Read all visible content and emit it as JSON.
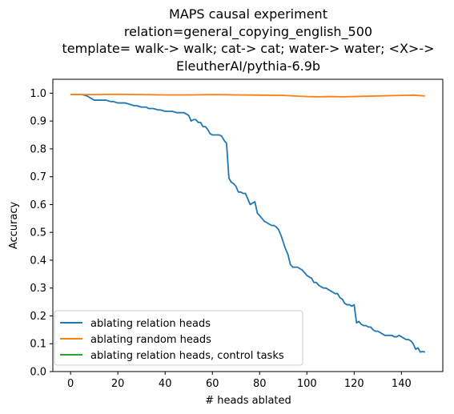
{
  "chart_data": {
    "type": "line",
    "title_lines": [
      "MAPS causal experiment",
      "relation=general_copying_english_500",
      "template= walk-> walk; cat-> cat; water-> water; <X>->",
      "EleutherAI/pythia-6.9b"
    ],
    "xlabel": "# heads ablated",
    "ylabel": "Accuracy",
    "xlim": [
      -7.5,
      157.5
    ],
    "ylim": [
      0.0,
      1.05
    ],
    "xticks": [
      0,
      20,
      40,
      60,
      80,
      100,
      120,
      140
    ],
    "yticks": [
      0.0,
      0.1,
      0.2,
      0.3,
      0.4,
      0.5,
      0.6,
      0.7,
      0.8,
      0.9,
      1.0
    ],
    "xtick_labels": [
      "0",
      "20",
      "40",
      "60",
      "80",
      "100",
      "120",
      "140"
    ],
    "ytick_labels": [
      "0.0",
      "0.1",
      "0.2",
      "0.3",
      "0.4",
      "0.5",
      "0.6",
      "0.7",
      "0.8",
      "0.9",
      "1.0"
    ],
    "grid": false,
    "legend_position": "lower-left",
    "series": [
      {
        "name": "ablating relation heads",
        "color": "#1f77b4",
        "x": [
          0,
          5,
          7,
          8,
          10,
          11,
          13,
          15,
          17,
          18,
          20,
          23,
          25,
          27,
          28,
          30,
          32,
          33,
          35,
          37,
          38,
          40,
          42,
          43,
          45,
          47,
          48,
          50,
          51,
          52,
          53,
          54,
          55,
          56,
          57,
          58,
          59,
          60,
          61,
          62,
          63,
          64,
          65,
          66,
          67,
          68,
          69,
          70,
          71,
          72,
          73,
          74,
          75,
          76,
          77,
          78,
          79,
          80,
          81,
          82,
          83,
          84,
          85,
          86,
          87,
          88,
          89,
          90,
          91,
          92,
          93,
          94,
          95,
          96,
          97,
          98,
          99,
          100,
          101,
          102,
          103,
          104,
          105,
          106,
          107,
          108,
          109,
          110,
          111,
          112,
          113,
          114,
          115,
          116,
          117,
          118,
          119,
          120,
          121,
          122,
          123,
          124,
          125,
          126,
          127,
          128,
          129,
          130,
          131,
          132,
          133,
          134,
          135,
          136,
          137,
          138,
          139,
          140,
          141,
          142,
          143,
          144,
          145,
          146,
          147,
          148,
          149,
          150
        ],
        "y": [
          0.995,
          0.995,
          0.99,
          0.985,
          0.975,
          0.975,
          0.975,
          0.975,
          0.97,
          0.97,
          0.965,
          0.965,
          0.96,
          0.955,
          0.955,
          0.95,
          0.95,
          0.945,
          0.945,
          0.94,
          0.94,
          0.935,
          0.935,
          0.935,
          0.93,
          0.93,
          0.93,
          0.92,
          0.9,
          0.905,
          0.905,
          0.895,
          0.895,
          0.88,
          0.88,
          0.87,
          0.855,
          0.85,
          0.85,
          0.85,
          0.85,
          0.845,
          0.83,
          0.82,
          0.695,
          0.68,
          0.675,
          0.665,
          0.645,
          0.645,
          0.64,
          0.64,
          0.62,
          0.6,
          0.605,
          0.61,
          0.57,
          0.56,
          0.55,
          0.54,
          0.535,
          0.53,
          0.525,
          0.525,
          0.52,
          0.51,
          0.49,
          0.465,
          0.44,
          0.42,
          0.385,
          0.375,
          0.375,
          0.375,
          0.37,
          0.365,
          0.355,
          0.345,
          0.34,
          0.335,
          0.32,
          0.32,
          0.31,
          0.305,
          0.3,
          0.3,
          0.295,
          0.29,
          0.285,
          0.28,
          0.28,
          0.265,
          0.26,
          0.245,
          0.24,
          0.24,
          0.235,
          0.24,
          0.175,
          0.18,
          0.17,
          0.165,
          0.165,
          0.16,
          0.16,
          0.15,
          0.145,
          0.145,
          0.14,
          0.135,
          0.13,
          0.13,
          0.13,
          0.13,
          0.125,
          0.125,
          0.13,
          0.125,
          0.12,
          0.115,
          0.115,
          0.11,
          0.1,
          0.08,
          0.085,
          0.07,
          0.072,
          0.07
        ]
      },
      {
        "name": "ablating random heads",
        "color": "#ff7f0e",
        "x": [
          0,
          10,
          20,
          30,
          40,
          50,
          60,
          70,
          80,
          90,
          95,
          100,
          105,
          110,
          115,
          120,
          125,
          130,
          135,
          140,
          145,
          150
        ],
        "y": [
          0.995,
          0.995,
          0.996,
          0.995,
          0.994,
          0.994,
          0.995,
          0.994,
          0.993,
          0.992,
          0.99,
          0.988,
          0.987,
          0.988,
          0.987,
          0.988,
          0.989,
          0.99,
          0.991,
          0.992,
          0.993,
          0.99
        ]
      },
      {
        "name": "ablating relation heads, control tasks",
        "color": "#2ca02c",
        "x": [],
        "y": []
      }
    ]
  }
}
